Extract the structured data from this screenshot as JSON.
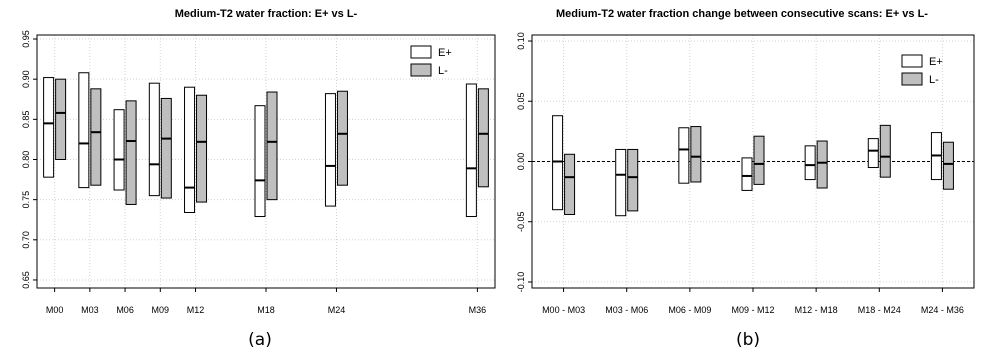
{
  "chart_data": [
    {
      "type": "boxplot",
      "title": "Medium-T2 water fraction: E+ vs L-",
      "caption": "(a)",
      "ylim": [
        0.64,
        0.955
      ],
      "yticks": [
        "0.65",
        "0.70",
        "0.75",
        "0.80",
        "0.85",
        "0.90",
        "0.95"
      ],
      "categories": [
        "M00",
        "M03",
        "M06",
        "M09",
        "M12",
        "M18",
        "M24",
        "M36"
      ],
      "x_months": [
        0,
        3,
        6,
        9,
        12,
        18,
        24,
        36
      ],
      "xlim": [
        -1.5,
        37.5
      ],
      "grid": true,
      "legend_position": "top-right",
      "series": [
        {
          "name": "E+",
          "fill": "#ffffff",
          "low": [
            0.778,
            0.765,
            0.762,
            0.755,
            0.734,
            0.729,
            0.742,
            0.729
          ],
          "median": [
            0.845,
            0.82,
            0.8,
            0.794,
            0.765,
            0.774,
            0.792,
            0.789
          ],
          "high": [
            0.902,
            0.908,
            0.862,
            0.895,
            0.89,
            0.867,
            0.882,
            0.894
          ]
        },
        {
          "name": "L-",
          "fill": "#bfbfbf",
          "low": [
            0.8,
            0.768,
            0.744,
            0.752,
            0.747,
            0.75,
            0.768,
            0.766
          ],
          "median": [
            0.858,
            0.834,
            0.823,
            0.826,
            0.822,
            0.822,
            0.832,
            0.832
          ],
          "high": [
            0.9,
            0.888,
            0.873,
            0.876,
            0.88,
            0.884,
            0.885,
            0.888
          ]
        }
      ]
    },
    {
      "type": "boxplot",
      "title": "Medium-T2 water fraction change between consecutive scans: E+ vs L-",
      "caption": "(b)",
      "ylim": [
        -0.105,
        0.105
      ],
      "yticks": [
        "-0.10",
        "-0.05",
        "0.00",
        "0.05",
        "0.10"
      ],
      "categories": [
        "M00 - M03",
        "M03 - M06",
        "M06 - M09",
        "M09 - M12",
        "M12 - M18",
        "M18 - M24",
        "M24 - M36"
      ],
      "grid": true,
      "reference_line": 0.0,
      "legend_position": "top-right",
      "series": [
        {
          "name": "E+",
          "fill": "#ffffff",
          "low": [
            -0.04,
            -0.045,
            -0.018,
            -0.024,
            -0.015,
            -0.005,
            -0.015
          ],
          "median": [
            0.0,
            -0.011,
            0.01,
            -0.012,
            -0.003,
            0.009,
            0.005
          ],
          "high": [
            0.038,
            0.01,
            0.028,
            0.003,
            0.013,
            0.019,
            0.024
          ]
        },
        {
          "name": "L-",
          "fill": "#bfbfbf",
          "low": [
            -0.044,
            -0.041,
            -0.017,
            -0.019,
            -0.022,
            -0.013,
            -0.023
          ],
          "median": [
            -0.013,
            -0.013,
            0.004,
            -0.002,
            -0.001,
            0.004,
            -0.002
          ],
          "high": [
            0.006,
            0.01,
            0.029,
            0.021,
            0.017,
            0.03,
            0.016
          ]
        }
      ]
    }
  ]
}
